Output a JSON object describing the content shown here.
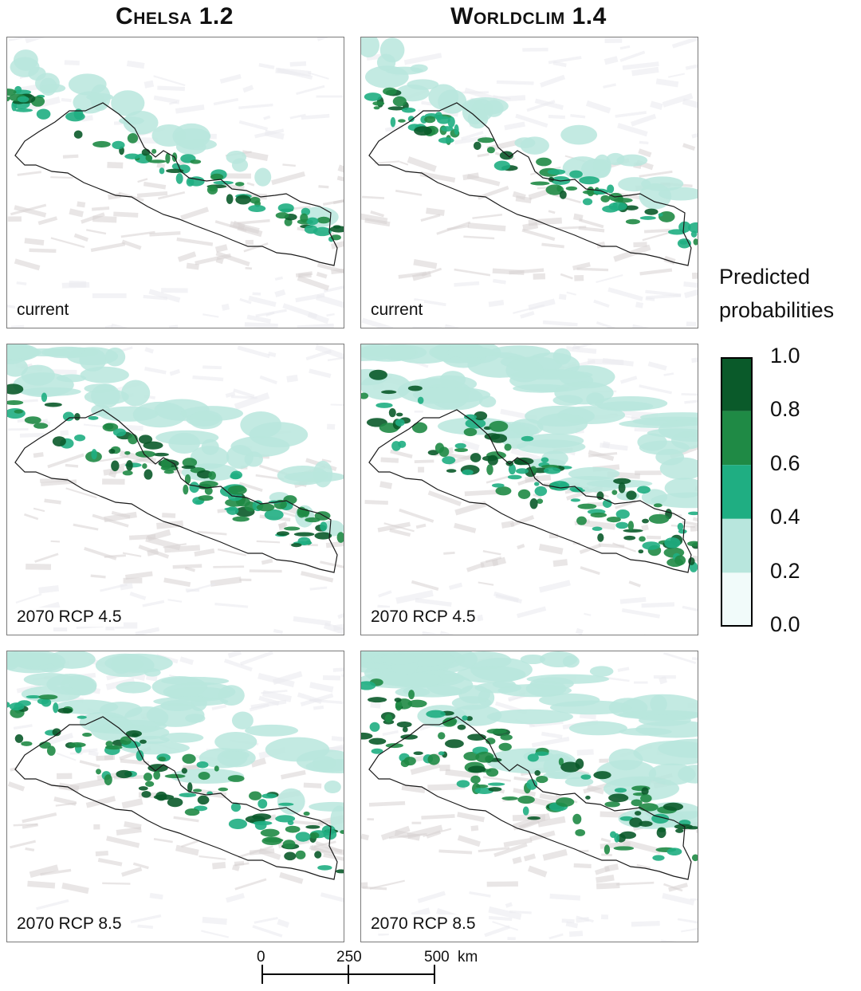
{
  "columns": [
    {
      "title": "Chelsa 1.2"
    },
    {
      "title": "Worldclim 1.4"
    }
  ],
  "panels": [
    {
      "label": "current",
      "intensity": 1
    },
    {
      "label": "current",
      "intensity": 1.3
    },
    {
      "label": "2070 RCP 4.5",
      "intensity": 2
    },
    {
      "label": "2070 RCP 4.5",
      "intensity": 3
    },
    {
      "label": "2070 RCP 8.5",
      "intensity": 2.5
    },
    {
      "label": "2070 RCP 8.5",
      "intensity": 3.2
    }
  ],
  "legend": {
    "title_line1": "Predicted",
    "title_line2": "probabilities",
    "ticks": [
      "1.0",
      "0.8",
      "0.6",
      "0.4",
      "0.2",
      "0.0"
    ],
    "colors": [
      "#0a5a2a",
      "#1f8a45",
      "#1fae82",
      "#b8e6dd",
      "#f1fbfa"
    ]
  },
  "scalebar": {
    "labels": [
      "0",
      "250",
      "500"
    ],
    "unit": "km"
  }
}
